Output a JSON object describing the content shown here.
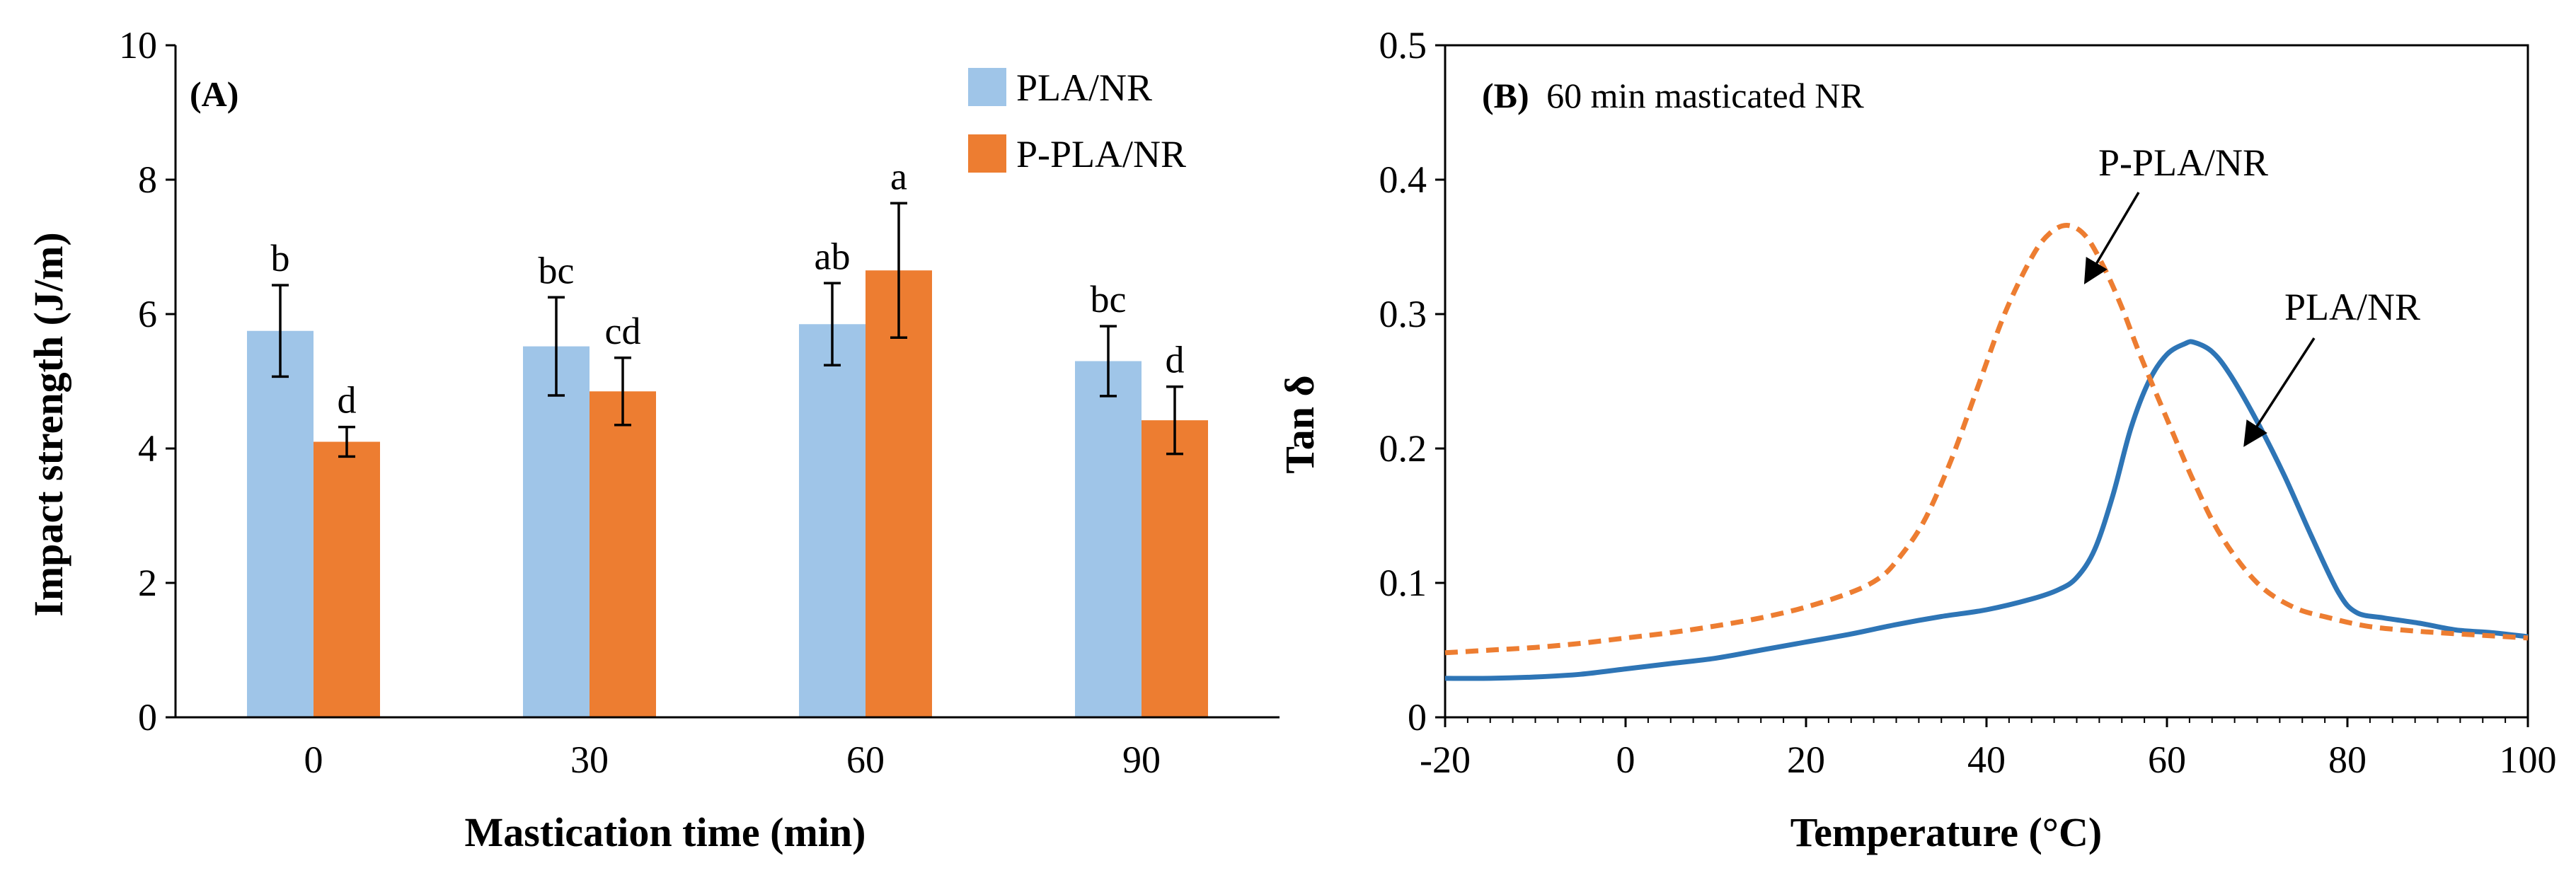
{
  "chart_data": [
    {
      "type": "bar",
      "panel_label": "(A)",
      "categories": [
        "0",
        "30",
        "60",
        "90"
      ],
      "xlabel": "Mastication time (min)",
      "ylabel": "Impact strength (J/m)",
      "ylim": [
        0,
        10
      ],
      "yticks": [
        "0",
        "2",
        "4",
        "6",
        "8",
        "10"
      ],
      "grid": false,
      "legend_position": "top-right",
      "series": [
        {
          "name": "PLA/NR",
          "color": "#9fc5e8",
          "values": [
            5.75,
            5.52,
            5.85,
            5.3
          ],
          "errors": [
            0.68,
            0.73,
            0.61,
            0.52
          ],
          "letters": [
            "b",
            "bc",
            "ab",
            "bc"
          ]
        },
        {
          "name": "P-PLA/NR",
          "color": "#ed7d31",
          "values": [
            4.1,
            4.85,
            6.65,
            4.42
          ],
          "errors": [
            0.22,
            0.5,
            1.0,
            0.5
          ],
          "letters": [
            "d",
            "cd",
            "a",
            "d"
          ]
        }
      ]
    },
    {
      "type": "line",
      "panel_label": "(B)",
      "panel_title": "60 min masticated NR",
      "xlabel": "Temperature (°C)",
      "ylabel": "Tan δ",
      "xlim": [
        -20,
        100
      ],
      "ylim": [
        0,
        0.5
      ],
      "xticks": [
        "-20",
        "0",
        "20",
        "40",
        "60",
        "80",
        "100"
      ],
      "yticks": [
        "0",
        "0.1",
        "0.2",
        "0.3",
        "0.4",
        "0.5"
      ],
      "grid": false,
      "series": [
        {
          "name": "PLA/NR",
          "color": "#2e75b6",
          "dash": "solid",
          "x": [
            -20,
            -15,
            -10,
            -5,
            0,
            5,
            10,
            15,
            20,
            25,
            30,
            35,
            40,
            45,
            48,
            50,
            52,
            54,
            56,
            58,
            60,
            62,
            63,
            65,
            67,
            70,
            73,
            76,
            79,
            81,
            84,
            88,
            92,
            96,
            100
          ],
          "y": [
            0.029,
            0.029,
            0.03,
            0.032,
            0.036,
            0.04,
            0.044,
            0.05,
            0.056,
            0.062,
            0.069,
            0.075,
            0.08,
            0.088,
            0.095,
            0.104,
            0.125,
            0.165,
            0.215,
            0.25,
            0.27,
            0.278,
            0.279,
            0.272,
            0.255,
            0.22,
            0.18,
            0.135,
            0.093,
            0.078,
            0.074,
            0.07,
            0.065,
            0.063,
            0.06
          ]
        },
        {
          "name": "P-PLA/NR",
          "color": "#ed7d31",
          "dash": "dashed",
          "x": [
            -20,
            -15,
            -10,
            -5,
            0,
            5,
            10,
            15,
            20,
            25,
            28,
            30,
            33,
            36,
            39,
            42,
            45,
            47,
            49,
            51,
            53,
            55,
            57,
            60,
            63,
            66,
            70,
            74,
            78,
            82,
            86,
            90,
            95,
            100
          ],
          "y": [
            0.048,
            0.05,
            0.052,
            0.055,
            0.059,
            0.063,
            0.068,
            0.074,
            0.082,
            0.093,
            0.103,
            0.116,
            0.145,
            0.19,
            0.245,
            0.3,
            0.342,
            0.36,
            0.366,
            0.358,
            0.335,
            0.305,
            0.27,
            0.222,
            0.175,
            0.135,
            0.1,
            0.082,
            0.074,
            0.068,
            0.065,
            0.063,
            0.061,
            0.059
          ]
        }
      ],
      "annotations": [
        {
          "text": "P-PLA/NR",
          "arrow_to": [
            50,
            0.32
          ]
        },
        {
          "text": "PLA/NR",
          "arrow_to": [
            68,
            0.2
          ]
        }
      ]
    }
  ]
}
